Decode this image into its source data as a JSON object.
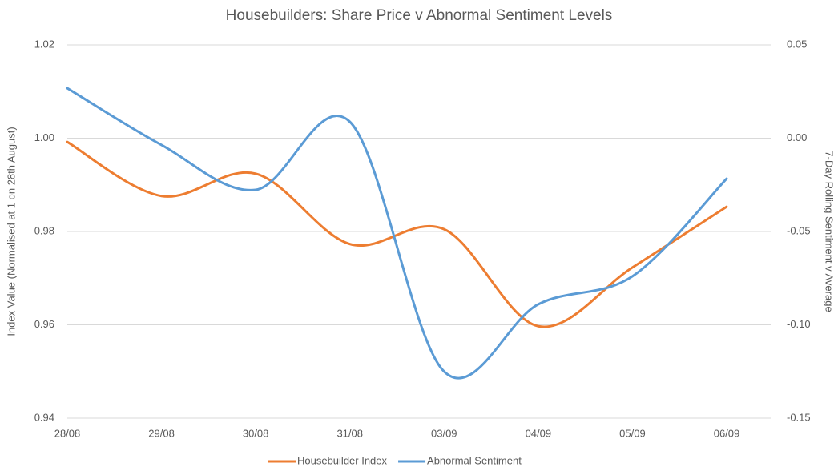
{
  "chart_data": {
    "type": "line",
    "title": "Housebuilders: Share Price v Abnormal Sentiment Levels",
    "y_label": "Index Value (Normalised at 1 on 28th August)",
    "y2_label": "7-Day Rolling Sentiment v Average",
    "categories": [
      "28/08",
      "29/08",
      "30/08",
      "31/08",
      "03/09",
      "04/09",
      "05/09",
      "06/09"
    ],
    "series": [
      {
        "name": "Housebuilder Index",
        "color": "#ed7d31",
        "values": [
          0.9992,
          0.9876,
          0.9924,
          0.9773,
          0.9805,
          0.9597,
          0.9723,
          0.9853
        ]
      },
      {
        "name": "Abnormal Sentiment",
        "color": "#5b9bd5",
        "axis": "y2",
        "values": [
          0.0268,
          -0.0036,
          -0.0277,
          0.0088,
          -0.125,
          -0.089,
          -0.074,
          -0.0217
        ]
      }
    ],
    "ylim": [
      0.94,
      1.02
    ],
    "yticks": [
      0.94,
      0.96,
      0.98,
      {
        "value": 1,
        "label": "1.00"
      },
      1.02
    ],
    "y2lim": [
      -0.15,
      0.05
    ],
    "y2ticks": [
      -0.15,
      {
        "value": -0.1,
        "label": "-0.10"
      },
      -0.05,
      {
        "value": 0,
        "label": "0.00"
      },
      0.05
    ],
    "grid": true,
    "smooth": true,
    "legend": "bottom"
  }
}
